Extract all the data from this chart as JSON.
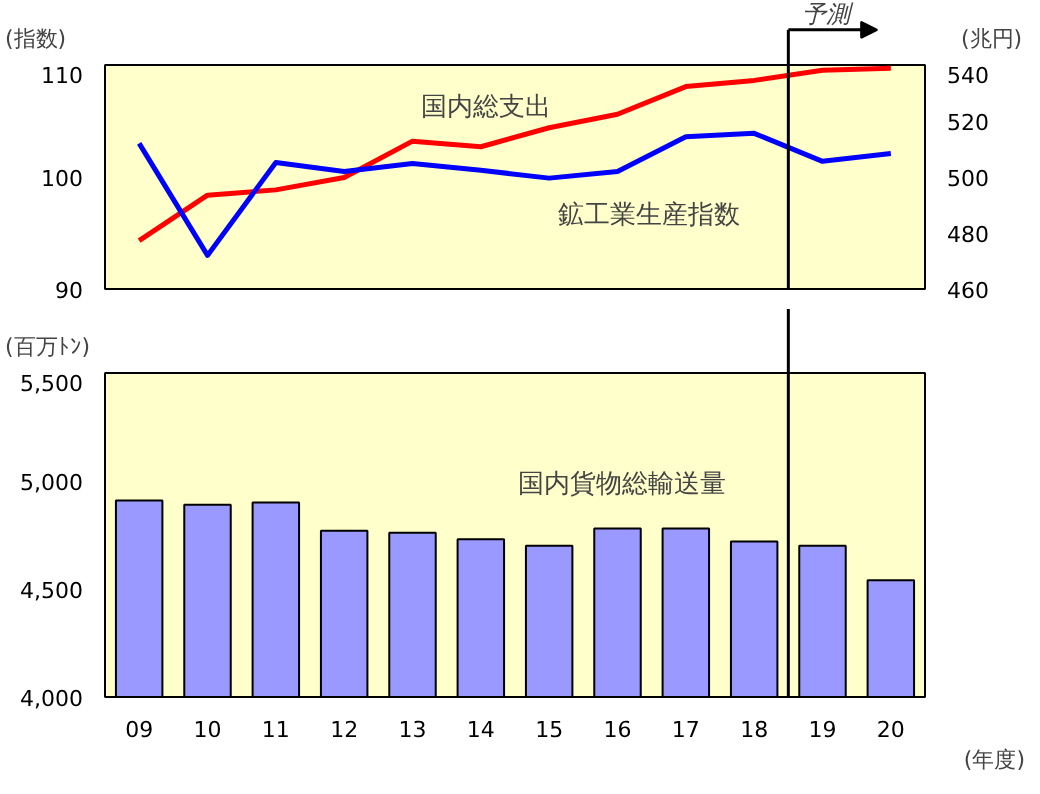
{
  "chart_data": [
    {
      "type": "line",
      "ylabel": "(指数)",
      "y2label": "(兆円)",
      "x": [
        9,
        10,
        11,
        12,
        13,
        14,
        15,
        16,
        17,
        18,
        19,
        20
      ],
      "xlim": [
        8.5,
        20.5
      ],
      "tick_labels": "y",
      "ylim": [
        90,
        110
      ],
      "yticks": [
        90,
        100,
        110
      ],
      "y2lim": [
        460,
        540
      ],
      "y2ticks": [
        460,
        480,
        500,
        520,
        540
      ],
      "series": [
        {
          "name": "国内総支出",
          "color": "#ff0000",
          "axis": "y2",
          "values": [
            477.3,
            493.5,
            495.4,
            499.8,
            512.8,
            510.8,
            517.6,
            522.4,
            532.3,
            534.5,
            538.1,
            538.8
          ]
        },
        {
          "name": "鉱工業生産指数",
          "color": "#0000ff",
          "values": [
            103.0,
            93.0,
            101.3,
            100.5,
            101.2,
            100.6,
            99.9,
            100.5,
            103.6,
            103.9,
            101.4,
            102.1
          ]
        }
      ],
      "ref_lines": [
        {
          "axis": "x",
          "value": 18.5,
          "label": "予測"
        }
      ],
      "grid": false
    },
    {
      "type": "bar",
      "ylabel": "(百万ﾄﾝ)",
      "xlabel": "(年度)",
      "x": [
        9,
        10,
        11,
        12,
        13,
        14,
        15,
        16,
        17,
        18,
        19,
        20
      ],
      "xlim": [
        8.5,
        20.5
      ],
      "xticks": [
        {
          "value": 9,
          "label": "09"
        },
        10,
        11,
        12,
        13,
        14,
        15,
        16,
        17,
        18,
        19,
        20
      ],
      "ylim": [
        4000,
        5500
      ],
      "yticks": [
        {
          "value": 4000,
          "label": "4,000"
        },
        {
          "value": 4500,
          "label": "4,500"
        },
        {
          "value": 5000,
          "label": "5,000"
        },
        {
          "value": 5500,
          "label": "5,500"
        }
      ],
      "series": [
        {
          "name": "国内貨物総輸送量",
          "color": "#9999ff",
          "values": [
            4910,
            4890,
            4900,
            4770,
            4760,
            4730,
            4700,
            4780,
            4780,
            4720,
            4700,
            4540
          ]
        }
      ],
      "ref_lines": [
        {
          "axis": "x",
          "value": 18.5
        }
      ],
      "grid": false
    }
  ]
}
